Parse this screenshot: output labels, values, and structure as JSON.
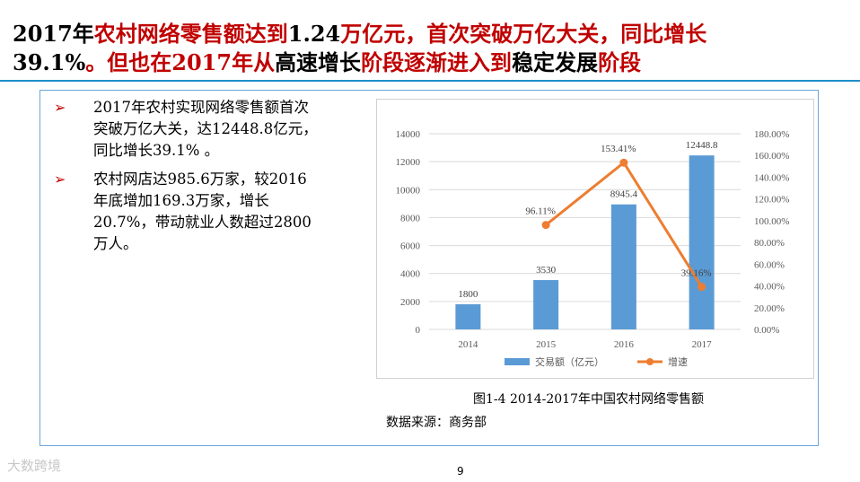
{
  "headline": {
    "p1": "2017年",
    "p2": "农村网络零售额达到",
    "p3": "1.24",
    "p4": "万亿元，首次突破万亿大关，同比增长",
    "p5": "39.1%",
    "p6": "。但也在",
    "p7": "2017年",
    "p8": "从",
    "p9": "高速增长",
    "p10": "阶段逐渐进入到",
    "p11": "稳定发展",
    "p12": "阶段"
  },
  "bullets": [
    {
      "marker": "➢",
      "text": "2017年农村实现网络零售额首次突破万亿大关，达12448.8亿元，同比增长39.1% 。"
    },
    {
      "marker": "➢",
      "text": "农村网店达985.6万家，较2016年底增加169.3万家，增长20.7%，带动就业人数超过2800万人。"
    }
  ],
  "chart_data": {
    "type": "bar",
    "categories": [
      "2014",
      "2015",
      "2016",
      "2017"
    ],
    "series": [
      {
        "name": "交易额（亿元）",
        "type": "bar",
        "axis": "left",
        "color": "#5b9bd5",
        "values": [
          1800,
          3530,
          8945.4,
          12448.8
        ],
        "labels": [
          "1800",
          "3530",
          "8945.4",
          "12448.8"
        ]
      },
      {
        "name": "增速",
        "type": "line",
        "axis": "right",
        "color": "#ed7d31",
        "x": [
          "2015",
          "2016",
          "2017"
        ],
        "values": [
          96.11,
          153.41,
          39.16
        ],
        "labels": [
          "96.11%",
          "153.41%",
          "39.16%"
        ]
      }
    ],
    "ylim_left": [
      0,
      14000
    ],
    "yticks_left": [
      "0",
      "2000",
      "4000",
      "6000",
      "8000",
      "10000",
      "12000",
      "14000"
    ],
    "ylim_right": [
      0,
      180
    ],
    "yticks_right": [
      "0.00%",
      "20.00%",
      "40.00%",
      "60.00%",
      "80.00%",
      "100.00%",
      "120.00%",
      "140.00%",
      "160.00%",
      "180.00%"
    ],
    "grid": true,
    "legend": "bottom"
  },
  "caption": "图1-4  2014-2017年中国农村网络零售额",
  "source": "数据来源：商务部",
  "footer": {
    "logo": "大数跨境",
    "page": "9"
  }
}
